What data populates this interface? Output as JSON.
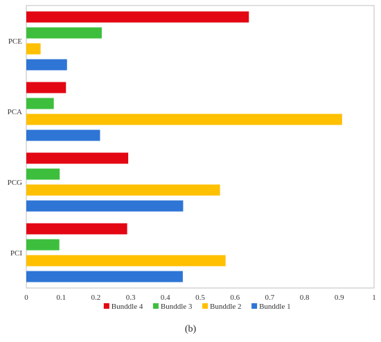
{
  "chart_data": {
    "type": "bar",
    "orientation": "horizontal",
    "categories": [
      "PCE",
      "PCA",
      "PCG",
      "PCI"
    ],
    "series": [
      {
        "name": "Bunddle 4",
        "color": "#e30613",
        "values": [
          0.64,
          0.114,
          0.293,
          0.29
        ]
      },
      {
        "name": "Bunddle 3",
        "color": "#3dbf3d",
        "values": [
          0.217,
          0.079,
          0.096,
          0.095
        ]
      },
      {
        "name": "Bunddle 2",
        "color": "#ffc000",
        "values": [
          0.041,
          0.908,
          0.557,
          0.573
        ]
      },
      {
        "name": "Bunddle 1",
        "color": "#2e75d6",
        "values": [
          0.117,
          0.212,
          0.451,
          0.45
        ]
      }
    ],
    "xlim": [
      0,
      1
    ],
    "xticks": [
      "0",
      "0.1",
      "0.2",
      "0.3",
      "0.4",
      "0.5",
      "0.6",
      "0.7",
      "0.8",
      "0.9",
      "1"
    ],
    "legend_position": "bottom",
    "grid": false
  },
  "caption": "(b)"
}
